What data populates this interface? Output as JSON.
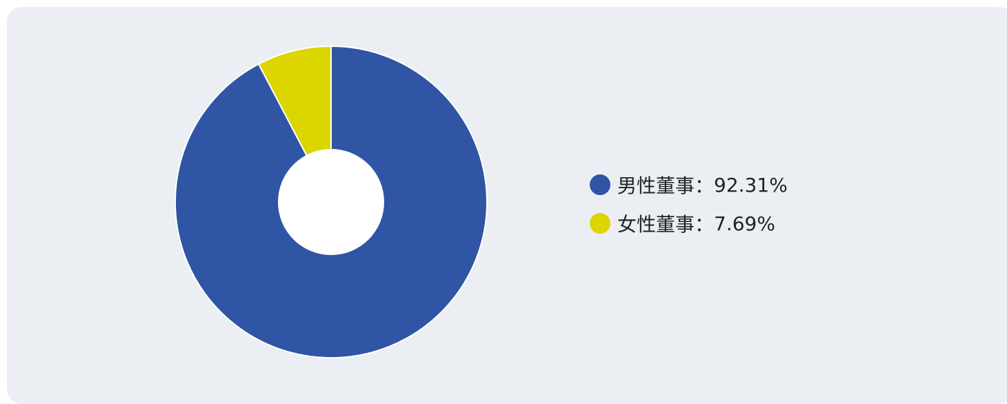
{
  "chart_data": {
    "type": "pie",
    "donut": true,
    "categories": [
      "男性董事",
      "女性董事"
    ],
    "values": [
      92.31,
      7.69
    ],
    "colors": [
      "#2f55a4",
      "#dcd500"
    ],
    "unit": "%",
    "legend_placement": "right",
    "legend": {
      "separator": "：",
      "items": [
        {
          "label": "男性董事",
          "value_text": "92.31%"
        },
        {
          "label": "女性董事",
          "value_text": "7.69%"
        }
      ]
    }
  },
  "background_color": "#ebeff3"
}
